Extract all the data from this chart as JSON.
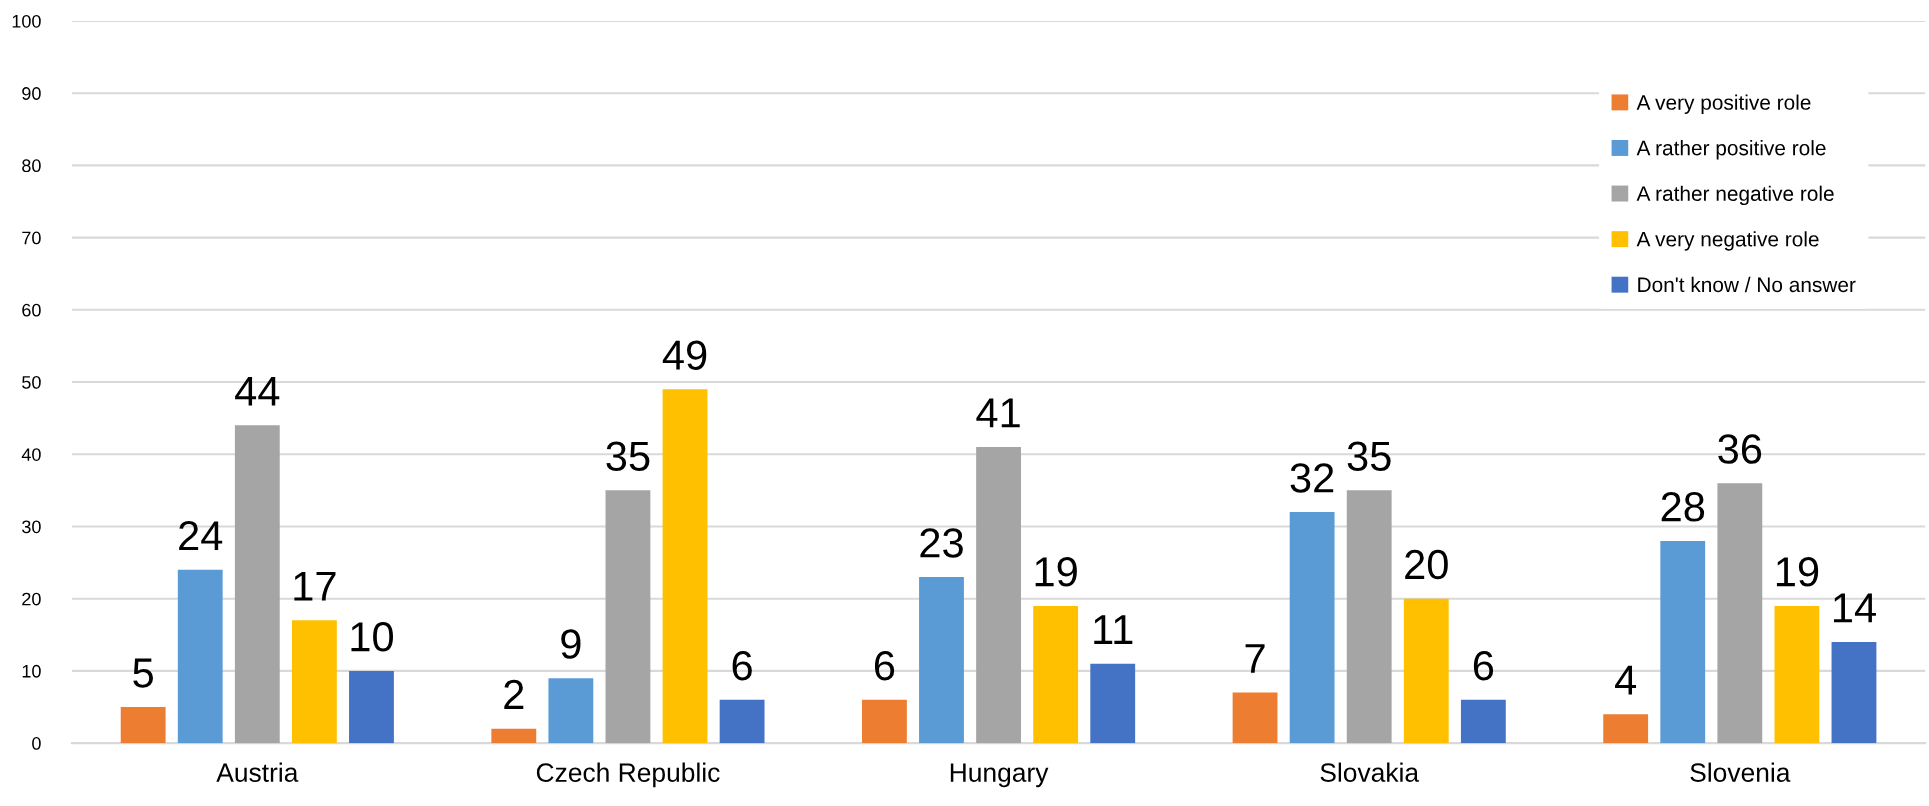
{
  "chart_data": {
    "type": "bar",
    "categories": [
      "Austria",
      "Czech Republic",
      "Hungary",
      "Slovakia",
      "Slovenia"
    ],
    "series": [
      {
        "name": "A very positive role",
        "color": "#ed7d31",
        "values": [
          5,
          2,
          6,
          7,
          4
        ]
      },
      {
        "name": "A rather positive role",
        "color": "#5b9bd5",
        "values": [
          24,
          9,
          23,
          32,
          28
        ]
      },
      {
        "name": "A rather negative role",
        "color": "#a5a5a5",
        "values": [
          44,
          35,
          41,
          35,
          36
        ]
      },
      {
        "name": "A very negative role",
        "color": "#ffc000",
        "values": [
          17,
          49,
          19,
          20,
          19
        ]
      },
      {
        "name": "Don't know / No answer",
        "color": "#4472c4",
        "values": [
          10,
          6,
          11,
          6,
          14
        ]
      }
    ],
    "ylim": [
      0,
      100
    ],
    "yticks": [
      0,
      10,
      20,
      30,
      40,
      50,
      60,
      70,
      80,
      90,
      100
    ],
    "grid": "y",
    "legend": "top right",
    "data_labels": true
  }
}
